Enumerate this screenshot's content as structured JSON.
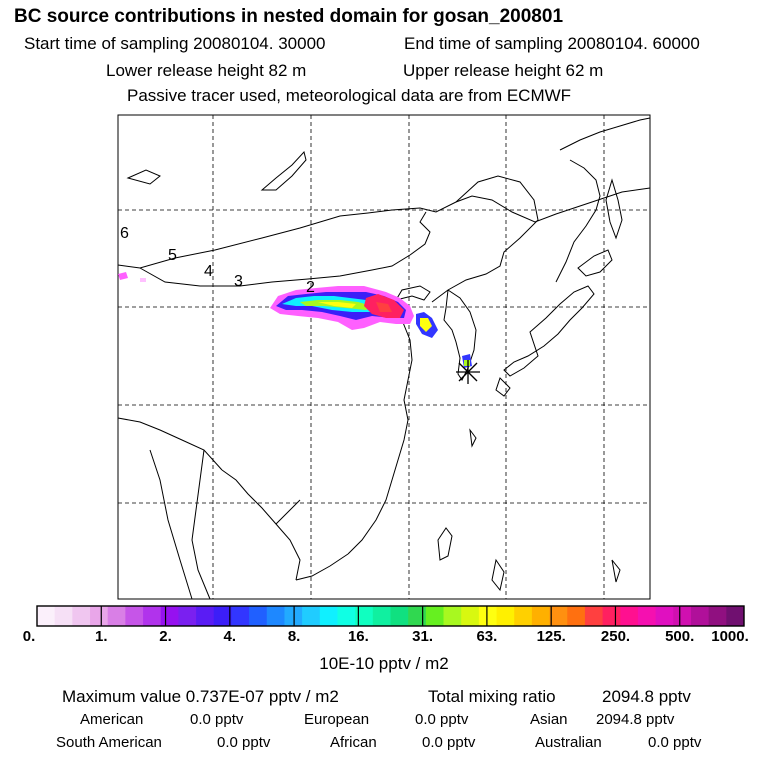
{
  "header": {
    "title": "BC  source contributions in nested domain for gosan_200801",
    "start_time": "Start time of sampling 20080104. 30000",
    "end_time": "End time of sampling 20080104. 60000",
    "lower_height": "Lower release height   82 m",
    "upper_height": "Upper release height   62 m",
    "tracer_note": "Passive tracer used, meteorological data are from ECMWF"
  },
  "map": {
    "trajectory_labels": [
      "6",
      "5",
      "4",
      "3",
      "2"
    ],
    "receptor_marker": "star-marker",
    "colors": {
      "plume_low": "#66e0ff",
      "plume_mid": "#4400ff",
      "plume_high": "#ff2080",
      "coast": "#000000",
      "grid": "#000000"
    }
  },
  "colorbar": {
    "ticks": [
      "0.",
      "1.",
      "2.",
      "4.",
      "8.",
      "16.",
      "31.",
      "63.",
      "125.",
      "250.",
      "500.",
      "1000."
    ],
    "colors": [
      "#fbf0fb",
      "#f6e0f6",
      "#f0c6f0",
      "#e9a6e9",
      "#d97fe6",
      "#c655e8",
      "#b133ec",
      "#9611f0",
      "#7a20f0",
      "#5a1cf4",
      "#3c1ef8",
      "#3236ff",
      "#2060ff",
      "#1e88ff",
      "#22aaff",
      "#20ccff",
      "#10f0ff",
      "#10ffe4",
      "#10ffc0",
      "#10f0a0",
      "#10e080",
      "#30d850",
      "#66f020",
      "#a8f820",
      "#d8f810",
      "#ffff10",
      "#fff000",
      "#ffd000",
      "#ffb000",
      "#ff9010",
      "#ff7010",
      "#ff4040",
      "#ff2060",
      "#ff1090",
      "#f510b0",
      "#e010c0",
      "#d010b0",
      "#b0109a",
      "#901080",
      "#701070"
    ],
    "unit": "10E-10 pptv / m2"
  },
  "summary": {
    "max_label": "Maximum value  0.737E-07 pptv / m2",
    "total_label": "Total mixing ratio",
    "total_value": "2094.8 pptv",
    "regions": [
      {
        "name": "American",
        "value": "0.0 pptv"
      },
      {
        "name": "European",
        "value": "0.0 pptv"
      },
      {
        "name": "Asian",
        "value": "2094.8 pptv"
      },
      {
        "name": "South American",
        "value": "0.0 pptv"
      },
      {
        "name": "African",
        "value": "0.0 pptv"
      },
      {
        "name": "Australian",
        "value": "0.0 pptv"
      }
    ]
  }
}
